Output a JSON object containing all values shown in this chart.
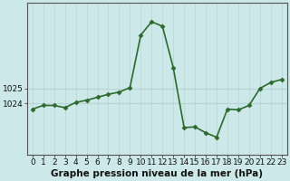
{
  "hours": [
    0,
    1,
    2,
    3,
    4,
    5,
    6,
    7,
    8,
    9,
    10,
    11,
    12,
    13,
    14,
    15,
    16,
    17,
    18,
    19,
    20,
    21,
    22,
    23
  ],
  "pressure": [
    1023.6,
    1023.85,
    1023.85,
    1023.7,
    1024.05,
    1024.2,
    1024.4,
    1024.6,
    1024.75,
    1025.05,
    1028.6,
    1029.5,
    1029.2,
    1026.4,
    1022.35,
    1022.4,
    1022.0,
    1021.7,
    1023.6,
    1023.55,
    1023.85,
    1025.0,
    1025.4,
    1025.6
  ],
  "line_color": "#2d6a2d",
  "marker": "D",
  "markersize": 2.5,
  "bg_color": "#cce8e8",
  "plot_bg_color": "#cce8e8",
  "hgrid_color": "#b8d4d4",
  "vgrid_color": "#b8d4d4",
  "xlabel": "Graphe pression niveau de la mer (hPa)",
  "xlabel_fontsize": 7.5,
  "ylabel_ticks": [
    1024,
    1025
  ],
  "ylim": [
    1020.5,
    1030.8
  ],
  "xlim": [
    -0.5,
    23.5
  ],
  "tick_fontsize": 6.5,
  "linewidth": 1.2,
  "spine_color": "#555555"
}
